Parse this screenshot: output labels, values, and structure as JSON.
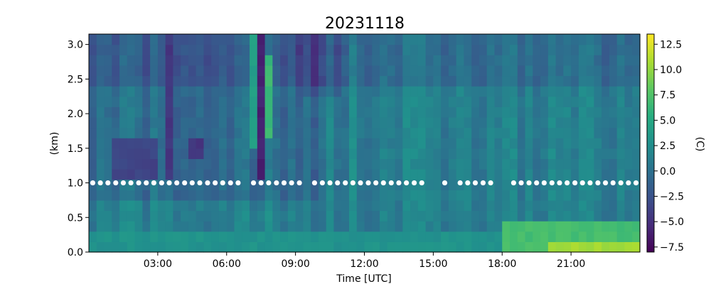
{
  "chart_data": {
    "type": "heatmap",
    "title": "20231118",
    "xlabel": "Time [UTC]",
    "ylabel": "(km)",
    "colorbar_label": "(C)",
    "colormap": "viridis",
    "x_range_hours": [
      0,
      24
    ],
    "ylim": [
      0,
      3.15
    ],
    "clim": [
      -8,
      13.5
    ],
    "x_ticks": [
      {
        "hour": 3,
        "label": "03:00"
      },
      {
        "hour": 6,
        "label": "06:00"
      },
      {
        "hour": 9,
        "label": "09:00"
      },
      {
        "hour": 12,
        "label": "12:00"
      },
      {
        "hour": 15,
        "label": "15:00"
      },
      {
        "hour": 18,
        "label": "18:00"
      },
      {
        "hour": 21,
        "label": "21:00"
      }
    ],
    "y_ticks": [
      {
        "value": 0.0,
        "label": "0.0"
      },
      {
        "value": 0.5,
        "label": "0.5"
      },
      {
        "value": 1.0,
        "label": "1.0"
      },
      {
        "value": 1.5,
        "label": "1.5"
      },
      {
        "value": 2.0,
        "label": "2.0"
      },
      {
        "value": 2.5,
        "label": "2.5"
      },
      {
        "value": 3.0,
        "label": "3.0"
      }
    ],
    "colorbar_ticks": [
      {
        "value": -7.5,
        "label": "−7.5"
      },
      {
        "value": -5.0,
        "label": "−5.0"
      },
      {
        "value": -2.5,
        "label": "−2.5"
      },
      {
        "value": 0.0,
        "label": "0.0"
      },
      {
        "value": 2.5,
        "label": "2.5"
      },
      {
        "value": 5.0,
        "label": "5.0"
      },
      {
        "value": 7.5,
        "label": "7.5"
      },
      {
        "value": 10.0,
        "label": "10.0"
      },
      {
        "value": 12.5,
        "label": "12.5"
      }
    ],
    "time_bins": 72,
    "height_bins": 21,
    "features": [
      {
        "t0": 3.2,
        "t1": 3.5,
        "h0": 1.0,
        "h1": 3.15,
        "value": -7.5
      },
      {
        "t0": 3.5,
        "t1": 3.8,
        "h0": 1.0,
        "h1": 3.15,
        "value": -4.5
      },
      {
        "t0": 7.5,
        "t1": 7.8,
        "h0": 1.1,
        "h1": 3.15,
        "value": -6.0
      },
      {
        "t0": 7.0,
        "t1": 7.5,
        "h0": 1.5,
        "h1": 3.15,
        "value": 4.0
      },
      {
        "t0": 7.8,
        "t1": 8.1,
        "h0": 1.7,
        "h1": 2.9,
        "value": 6.5
      },
      {
        "t0": 1.0,
        "t1": 3.0,
        "h0": 1.0,
        "h1": 1.6,
        "value": -3.5
      },
      {
        "t0": 4.5,
        "t1": 5.0,
        "h0": 1.3,
        "h1": 1.6,
        "value": -4.5
      },
      {
        "t0": 0.0,
        "t1": 24.0,
        "h0": 0.0,
        "h1": 0.25,
        "value": 3.0
      },
      {
        "t0": 18.0,
        "t1": 24.0,
        "h0": 0.0,
        "h1": 0.5,
        "value": 7.0
      },
      {
        "t0": 20.0,
        "t1": 24.0,
        "h0": 0.0,
        "h1": 0.2,
        "value": 10.5
      }
    ],
    "marker_level_km": 1.0,
    "marker_times_hours": [
      0.17,
      0.5,
      0.83,
      1.17,
      1.5,
      1.83,
      2.17,
      2.5,
      2.83,
      3.17,
      3.5,
      3.83,
      4.17,
      4.5,
      4.83,
      5.17,
      5.5,
      5.83,
      6.17,
      6.5,
      7.17,
      7.5,
      7.83,
      8.17,
      8.5,
      8.83,
      9.17,
      9.83,
      10.17,
      10.5,
      10.83,
      11.17,
      11.5,
      11.83,
      12.17,
      12.5,
      12.83,
      13.17,
      13.5,
      13.83,
      14.17,
      14.5,
      15.5,
      16.17,
      16.5,
      16.83,
      17.17,
      17.5,
      18.5,
      18.83,
      19.17,
      19.5,
      19.83,
      20.17,
      20.5,
      20.83,
      21.17,
      21.5,
      21.83,
      22.17,
      22.5,
      22.83,
      23.17,
      23.5,
      23.83
    ]
  }
}
